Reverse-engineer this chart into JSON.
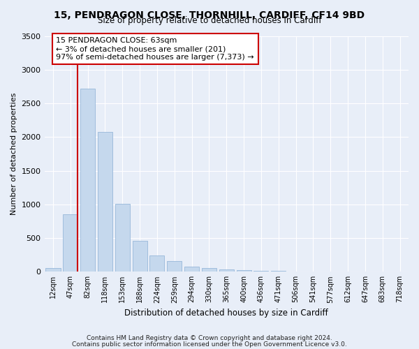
{
  "title": "15, PENDRAGON CLOSE, THORNHILL, CARDIFF, CF14 9BD",
  "subtitle": "Size of property relative to detached houses in Cardiff",
  "xlabel": "Distribution of detached houses by size in Cardiff",
  "ylabel": "Number of detached properties",
  "bar_color": "#c5d8ed",
  "bar_edgecolor": "#8aafd4",
  "background_color": "#e8eef8",
  "grid_color": "#ffffff",
  "categories": [
    "12sqm",
    "47sqm",
    "82sqm",
    "118sqm",
    "153sqm",
    "188sqm",
    "224sqm",
    "259sqm",
    "294sqm",
    "330sqm",
    "365sqm",
    "400sqm",
    "436sqm",
    "471sqm",
    "506sqm",
    "541sqm",
    "577sqm",
    "612sqm",
    "647sqm",
    "683sqm",
    "718sqm"
  ],
  "values": [
    60,
    850,
    2720,
    2080,
    1010,
    460,
    245,
    155,
    75,
    50,
    30,
    20,
    15,
    10,
    8,
    5,
    4,
    3,
    2,
    2,
    1
  ],
  "ylim": [
    0,
    3500
  ],
  "yticks": [
    0,
    500,
    1000,
    1500,
    2000,
    2500,
    3000,
    3500
  ],
  "marker_bin_index": 1,
  "marker_color": "#cc0000",
  "annotation_title": "15 PENDRAGON CLOSE: 63sqm",
  "annotation_line1": "← 3% of detached houses are smaller (201)",
  "annotation_line2": "97% of semi-detached houses are larger (7,373) →",
  "annotation_box_color": "#ffffff",
  "annotation_border_color": "#cc0000",
  "footnote1": "Contains HM Land Registry data © Crown copyright and database right 2024.",
  "footnote2": "Contains public sector information licensed under the Open Government Licence v3.0."
}
